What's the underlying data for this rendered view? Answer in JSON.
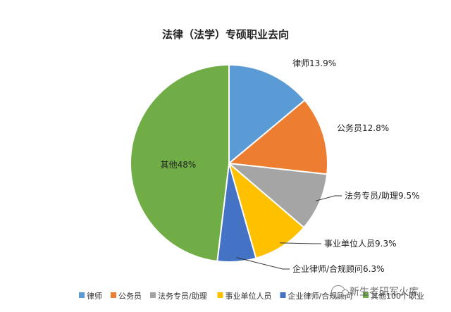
{
  "chart_data": {
    "type": "pie",
    "title": "法律（法学）专硕职业去向",
    "categories": [
      "律师",
      "公务员",
      "法务专员/助理",
      "事业单位人员",
      "企业律师/合规顾问",
      "其他100个职业"
    ],
    "values": [
      13.9,
      12.8,
      9.5,
      9.3,
      6.3,
      48
    ],
    "data_labels": [
      "律师13.9%",
      "公务员12.8%",
      "法务专员/助理9.5%",
      "事业单位人员9.3%",
      "企业律师/合规顾问6.3%",
      "其他48%"
    ],
    "colors": [
      "#5B9BD5",
      "#ED7D31",
      "#A5A5A5",
      "#FFC000",
      "#4472C4",
      "#70AD47"
    ],
    "legend_position": "bottom",
    "start": "12 o'clock",
    "direction": "clockwise"
  },
  "watermark": {
    "text": "新生考研军火库",
    "icon": "wechat-icon"
  }
}
